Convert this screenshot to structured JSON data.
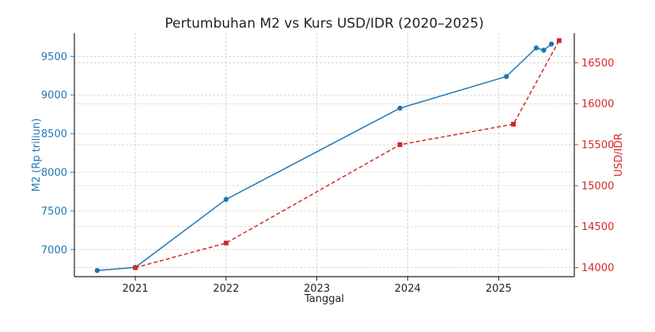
{
  "chart_data": {
    "type": "line",
    "title": "Pertumbuhan M2 vs Kurs USD/IDR (2020–2025)",
    "xlabel": "Tanggal",
    "x_tick_labels": [
      "2021",
      "2022",
      "2023",
      "2024",
      "2025"
    ],
    "x_ticks": [
      "2021-01-01",
      "2022-01-01",
      "2023-01-01",
      "2024-01-01",
      "2025-01-01"
    ],
    "xlim": [
      "2020-05-01",
      "2025-11-01"
    ],
    "grid": true,
    "series": [
      {
        "axis": "left",
        "ylabel": "M2 (Rp triliun)",
        "color": "#1f77b4",
        "style": "solid",
        "marker": "circle",
        "ylim": [
          6650,
          9800
        ],
        "yticks": [
          7000,
          7500,
          8000,
          8500,
          9000,
          9500
        ],
        "points": [
          {
            "x": "2020-08-01",
            "y": 6730
          },
          {
            "x": "2021-01-01",
            "y": 6770
          },
          {
            "x": "2022-01-01",
            "y": 7650
          },
          {
            "x": "2023-12-01",
            "y": 8830
          },
          {
            "x": "2025-02-01",
            "y": 9240
          },
          {
            "x": "2025-06-01",
            "y": 9610
          },
          {
            "x": "2025-07-01",
            "y": 9580
          },
          {
            "x": "2025-08-01",
            "y": 9660
          }
        ]
      },
      {
        "axis": "right",
        "ylabel": "USD/IDR",
        "color": "#d62728",
        "style": "dashed",
        "marker": "square",
        "ylim": [
          13890,
          16860
        ],
        "yticks": [
          14000,
          14500,
          15000,
          15500,
          16000,
          16500
        ],
        "points": [
          {
            "x": "2021-01-01",
            "y": 14000
          },
          {
            "x": "2022-01-01",
            "y": 14300
          },
          {
            "x": "2023-12-01",
            "y": 15500
          },
          {
            "x": "2025-03-01",
            "y": 15750
          },
          {
            "x": "2025-09-01",
            "y": 16770
          }
        ]
      }
    ]
  }
}
